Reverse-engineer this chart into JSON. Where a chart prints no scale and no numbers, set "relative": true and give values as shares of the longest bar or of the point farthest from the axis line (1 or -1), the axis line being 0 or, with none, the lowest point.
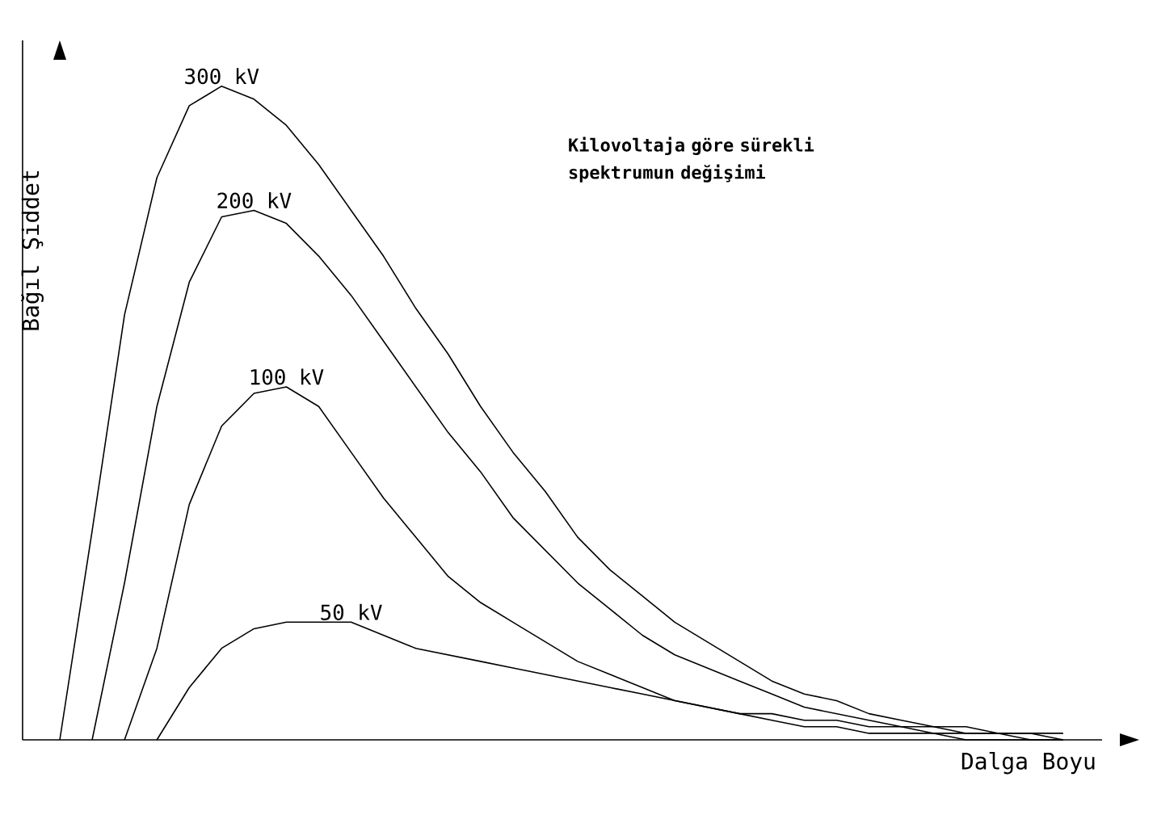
{
  "chart_data": {
    "type": "line",
    "relative": true,
    "title": "Kilovoltaja göre sürekli spektrumun değişimi",
    "xlabel": "Dalga Boyu",
    "ylabel": "Bağıl Şiddet",
    "categories": [
      null,
      null,
      null,
      null,
      null,
      null,
      null,
      null,
      null,
      null,
      null,
      null,
      null,
      null,
      null,
      null,
      null,
      null,
      null,
      null,
      null,
      null,
      null,
      null,
      null,
      null,
      null,
      null,
      null,
      null,
      null,
      null
    ],
    "series": [
      {
        "name": "300 kV",
        "color": "#000000",
        "values": [
          0,
          0.32,
          0.65,
          0.86,
          0.97,
          1,
          0.98,
          0.94,
          0.88,
          0.81,
          0.74,
          0.66,
          0.59,
          0.51,
          0.44,
          0.38,
          0.31,
          0.26,
          0.22,
          0.18,
          0.15,
          0.12,
          0.09,
          0.07,
          0.06,
          0.04,
          0.03,
          0.02,
          0.02,
          0.01,
          0.01,
          0.01
        ]
      },
      {
        "name": "200 kV",
        "color": "#000000",
        "values": [
          null,
          0,
          0.24,
          0.51,
          0.7,
          0.8,
          0.81,
          0.79,
          0.74,
          0.68,
          0.61,
          0.54,
          0.47,
          0.41,
          0.34,
          0.29,
          0.24,
          0.2,
          0.16,
          0.13,
          0.11,
          0.09,
          0.07,
          0.05,
          0.04,
          0.03,
          0.02,
          0.02,
          0.01,
          0.01,
          0.01,
          0
        ]
      },
      {
        "name": "100 kV",
        "color": "#000000",
        "values": [
          null,
          null,
          0,
          0.14,
          0.36,
          0.48,
          0.53,
          0.54,
          0.51,
          0.44,
          0.37,
          0.31,
          0.25,
          0.21,
          0.18,
          0.15,
          0.12,
          0.1,
          0.08,
          0.06,
          0.05,
          0.04,
          0.03,
          0.02,
          0.02,
          0.01,
          0.01,
          0.01,
          0,
          0,
          0,
          0
        ]
      },
      {
        "name": "50 kV",
        "color": "#000000",
        "values": [
          null,
          null,
          null,
          0,
          0.08,
          0.14,
          0.17,
          0.18,
          0.18,
          0.18,
          0.16,
          0.14,
          0.13,
          0.12,
          0.11,
          0.1,
          0.09,
          0.08,
          0.07,
          0.06,
          0.05,
          0.04,
          0.04,
          0.03,
          0.03,
          0.02,
          0.02,
          0.01,
          0.01,
          0.01,
          0,
          0
        ]
      }
    ]
  }
}
